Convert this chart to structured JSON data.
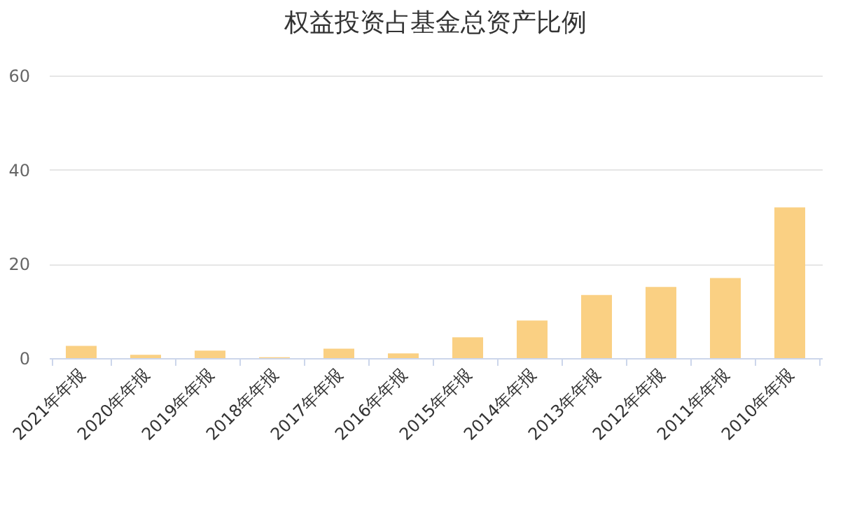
{
  "chart_data": {
    "type": "bar",
    "title": "权益投资占基金总资产比例",
    "categories": [
      "2021年年报",
      "2020年年报",
      "2019年年报",
      "2018年年报",
      "2017年年报",
      "2016年年报",
      "2015年年报",
      "2014年年报",
      "2013年年报",
      "2012年年报",
      "2011年年报",
      "2010年年报"
    ],
    "values": [
      2.6,
      0.7,
      1.6,
      0.2,
      2.0,
      1.0,
      4.4,
      8.0,
      13.4,
      15.1,
      17.0,
      32.0
    ],
    "color": "#fad083",
    "ylim": [
      0,
      60
    ],
    "yticks": [
      0,
      20,
      40,
      60
    ],
    "grid": "y"
  }
}
